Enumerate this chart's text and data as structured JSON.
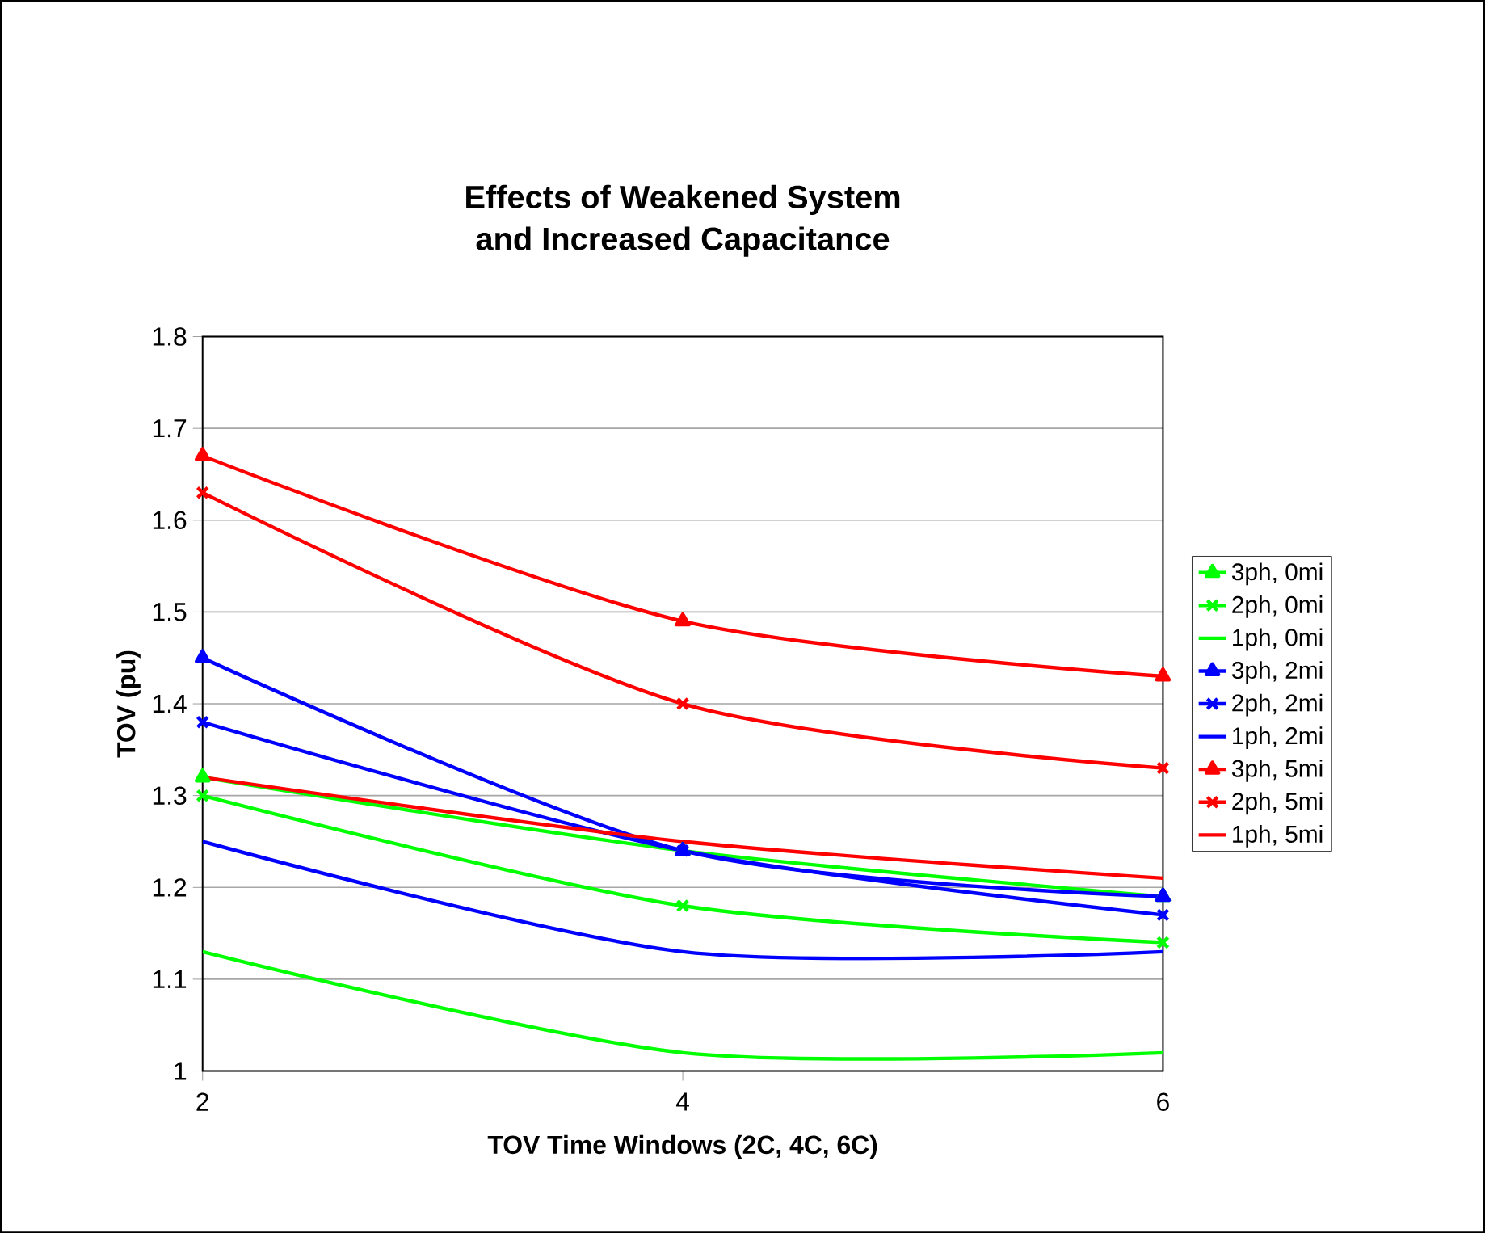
{
  "chart_data": {
    "type": "line",
    "title": "Effects of Weakened System\nand Increased Capacitance",
    "xlabel": "TOV Time Windows (2C, 4C, 6C)",
    "ylabel": "TOV (pu)",
    "x": [
      2,
      4,
      6
    ],
    "xlim": [
      2,
      6
    ],
    "xticks": [
      2,
      4,
      6
    ],
    "ylim": [
      1,
      1.8
    ],
    "yticks": [
      1,
      1.1,
      1.2,
      1.3,
      1.4,
      1.5,
      1.6,
      1.7,
      1.8
    ],
    "grid": "y",
    "legend": "right",
    "series": [
      {
        "name": "3ph, 0mi",
        "color": "#00ff00",
        "marker": "triangle",
        "values": [
          1.32,
          1.24,
          1.19
        ]
      },
      {
        "name": "2ph, 0mi",
        "color": "#00ff00",
        "marker": "cross",
        "values": [
          1.3,
          1.18,
          1.14
        ]
      },
      {
        "name": "1ph, 0mi",
        "color": "#00ff00",
        "marker": "none",
        "values": [
          1.13,
          1.02,
          1.02
        ]
      },
      {
        "name": "3ph, 2mi",
        "color": "#0000ff",
        "marker": "triangle",
        "values": [
          1.45,
          1.24,
          1.19
        ]
      },
      {
        "name": "2ph, 2mi",
        "color": "#0000ff",
        "marker": "cross",
        "values": [
          1.38,
          1.24,
          1.17
        ]
      },
      {
        "name": "1ph, 2mi",
        "color": "#0000ff",
        "marker": "none",
        "values": [
          1.25,
          1.13,
          1.13
        ]
      },
      {
        "name": "3ph, 5mi",
        "color": "#ff0000",
        "marker": "triangle",
        "values": [
          1.67,
          1.49,
          1.43
        ]
      },
      {
        "name": "2ph, 5mi",
        "color": "#ff0000",
        "marker": "cross",
        "values": [
          1.63,
          1.4,
          1.33
        ]
      },
      {
        "name": "1ph, 5mi",
        "color": "#ff0000",
        "marker": "none",
        "values": [
          1.32,
          1.25,
          1.21
        ]
      }
    ]
  }
}
